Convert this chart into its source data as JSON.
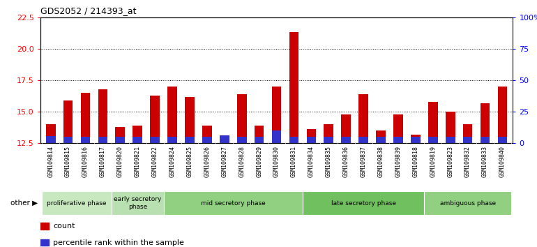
{
  "title": "GDS2052 / 214393_at",
  "samples": [
    "GSM109814",
    "GSM109815",
    "GSM109816",
    "GSM109817",
    "GSM109820",
    "GSM109821",
    "GSM109822",
    "GSM109824",
    "GSM109825",
    "GSM109826",
    "GSM109827",
    "GSM109828",
    "GSM109829",
    "GSM109830",
    "GSM109831",
    "GSM109834",
    "GSM109835",
    "GSM109836",
    "GSM109837",
    "GSM109838",
    "GSM109839",
    "GSM109818",
    "GSM109819",
    "GSM109823",
    "GSM109832",
    "GSM109833",
    "GSM109840"
  ],
  "red_values": [
    14.0,
    15.9,
    16.5,
    16.8,
    13.8,
    13.9,
    16.3,
    17.0,
    16.2,
    13.9,
    12.9,
    16.4,
    13.9,
    17.0,
    21.3,
    13.6,
    14.0,
    14.8,
    16.4,
    13.5,
    14.8,
    13.2,
    15.8,
    15.0,
    14.0,
    15.7,
    17.0
  ],
  "blue_values": [
    0.55,
    0.5,
    0.5,
    0.5,
    0.5,
    0.5,
    0.5,
    0.5,
    0.5,
    0.5,
    0.6,
    0.5,
    0.5,
    1.0,
    0.5,
    0.5,
    0.5,
    0.5,
    0.5,
    0.5,
    0.5,
    0.5,
    0.5,
    0.5,
    0.5,
    0.5,
    0.5
  ],
  "ylim_left": [
    12.5,
    22.5
  ],
  "yticks_left": [
    12.5,
    15.0,
    17.5,
    20.0,
    22.5
  ],
  "yticks_right": [
    0,
    25,
    50,
    75,
    100
  ],
  "ytick_labels_right": [
    "0",
    "25",
    "50",
    "75",
    "100%"
  ],
  "bar_width": 0.55,
  "baseline": 12.5,
  "red_color": "#cc0000",
  "blue_color": "#3333cc",
  "plot_bg_color": "#ffffff",
  "tick_label_bg": "#d3d3d3",
  "phases": [
    {
      "label": "proliferative phase",
      "start": 0,
      "end": 3,
      "color": "#c8e8c0"
    },
    {
      "label": "early secretory\nphase",
      "start": 4,
      "end": 6,
      "color": "#b8e0b0"
    },
    {
      "label": "mid secretory phase",
      "start": 7,
      "end": 14,
      "color": "#90d080"
    },
    {
      "label": "late secretory phase",
      "start": 15,
      "end": 21,
      "color": "#70c060"
    },
    {
      "label": "ambiguous phase",
      "start": 22,
      "end": 26,
      "color": "#90d080"
    }
  ]
}
